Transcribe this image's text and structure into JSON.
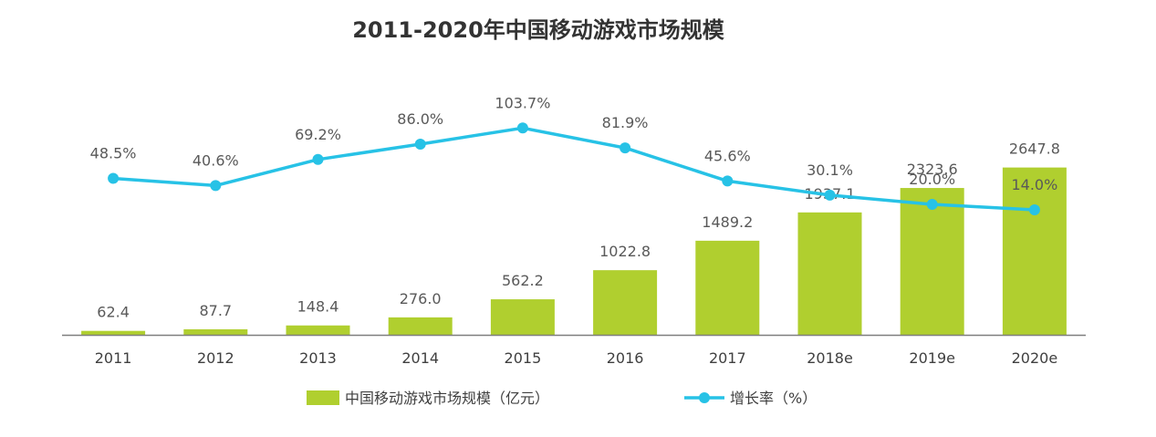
{
  "chart_data": {
    "type": "bar",
    "title": "2011-2020年中国移动游戏市场规模",
    "categories": [
      "2011",
      "2012",
      "2013",
      "2014",
      "2015",
      "2016",
      "2017",
      "2018e",
      "2019e",
      "2020e"
    ],
    "series": [
      {
        "name": "中国移动游戏市场规模（亿元）",
        "type": "bar",
        "color": "#b0cf2f",
        "values": [
          62.4,
          87.7,
          148.4,
          276.0,
          562.2,
          1022.8,
          1489.2,
          1937.1,
          2323.6,
          2647.8
        ],
        "labels": [
          "62.4",
          "87.7",
          "148.4",
          "276.0",
          "562.2",
          "1022.8",
          "1489.2",
          "1937.1",
          "2323.6",
          "2647.8"
        ]
      },
      {
        "name": "增长率（%）",
        "type": "line",
        "color": "#27c2e6",
        "values": [
          48.5,
          40.6,
          69.2,
          86.0,
          103.7,
          81.9,
          45.6,
          30.1,
          20.0,
          14.0
        ],
        "labels": [
          "48.5%",
          "40.6%",
          "69.2%",
          "86.0%",
          "103.7%",
          "81.9%",
          "45.6%",
          "30.1%",
          "20.0%",
          "14.0%"
        ]
      }
    ],
    "bar_ylim": [
      0,
      2700
    ],
    "line_ylim": [
      -100,
      200
    ],
    "xlabel": "",
    "ylabel": "",
    "grid": false,
    "legend": "bottom-center",
    "axis_color": "#7f7f7f"
  }
}
